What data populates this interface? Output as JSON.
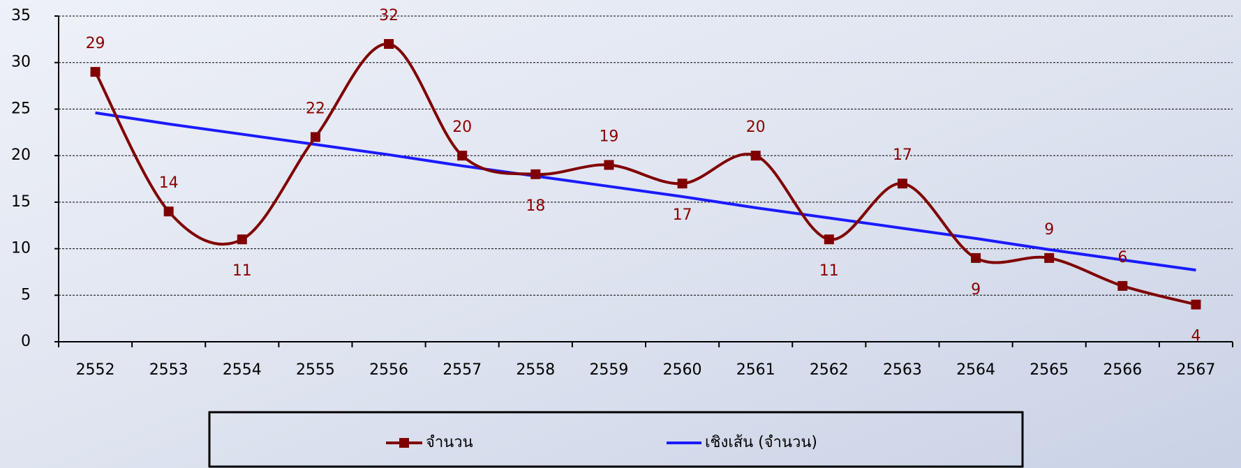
{
  "chart_data": {
    "type": "line",
    "categories": [
      "2552",
      "2553",
      "2554",
      "2555",
      "2556",
      "2557",
      "2558",
      "2559",
      "2560",
      "2561",
      "2562",
      "2563",
      "2564",
      "2565",
      "2566",
      "2567"
    ],
    "series": [
      {
        "name": "จำนวน",
        "color": "#800000",
        "values": [
          29,
          14,
          11,
          22,
          32,
          20,
          18,
          19,
          17,
          20,
          11,
          17,
          9,
          9,
          6,
          4
        ]
      },
      {
        "name": "เชิงเส้น (จำนวน)",
        "color": "#1a1aff",
        "values": [
          24.6,
          23.4,
          22.3,
          21.2,
          20.1,
          18.9,
          17.8,
          16.7,
          15.6,
          14.4,
          13.3,
          12.2,
          11.1,
          9.9,
          8.8,
          7.7
        ]
      }
    ],
    "ylim": [
      0,
      35
    ],
    "yticks": [
      0,
      5,
      10,
      15,
      20,
      25,
      30,
      35
    ],
    "grid": true,
    "legend": "bottom"
  }
}
